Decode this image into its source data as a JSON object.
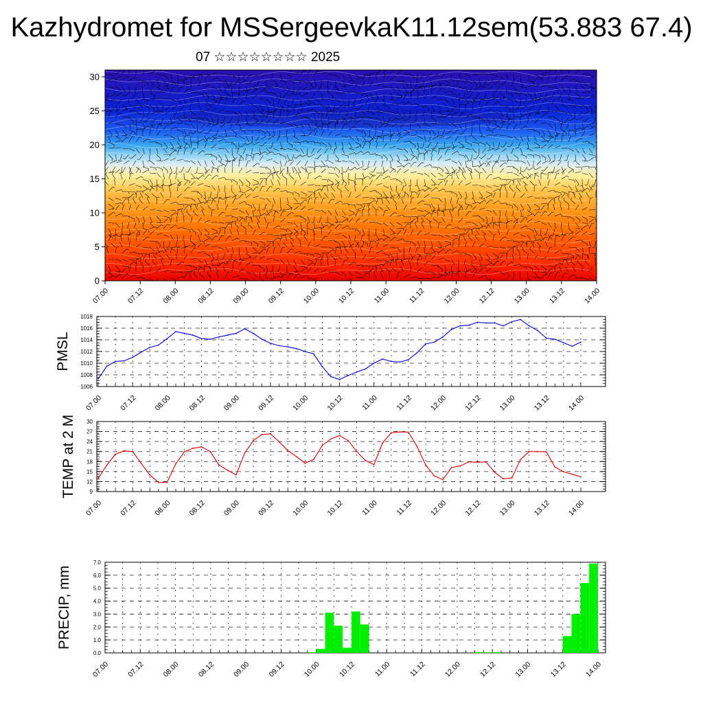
{
  "title": "Kazhydromet for MSSergeevkaK11.12sem(53.883 67.4)",
  "subtitle": "07 ☆☆☆☆☆☆☆☆ 2025",
  "time_labels": [
    "07.00",
    "07.12",
    "08.00",
    "08.12",
    "09.00",
    "09.12",
    "10.00",
    "10.12",
    "11.00",
    "11.12",
    "12.00",
    "12.12",
    "13.00",
    "13.12",
    "14.00"
  ],
  "chart_data": [
    {
      "type": "heatmap",
      "title": "",
      "xlabel": "",
      "ylabel": "",
      "x_ticks": [
        "07.00",
        "07.12",
        "08.00",
        "08.12",
        "09.00",
        "09.12",
        "10.00",
        "10.12",
        "11.00",
        "11.12",
        "12.00",
        "12.12",
        "13.00",
        "13.12",
        "14.00"
      ],
      "y_ticks": [
        0,
        5,
        10,
        15,
        20,
        25,
        30
      ],
      "ylim": [
        0,
        31
      ],
      "colormap": [
        "#e80000",
        "#ff3300",
        "#ff6a00",
        "#ff9a1a",
        "#ffc850",
        "#fff0a0",
        "#d8ecf4",
        "#8fd2f0",
        "#39a4ee",
        "#1e5cf0",
        "#0a22d4",
        "#2a10b0"
      ],
      "colormap_heights": [
        0,
        3,
        7,
        10.5,
        13.5,
        15.5,
        17.2,
        18.5,
        20,
        22,
        25,
        31
      ],
      "overlay": "wind barbs"
    },
    {
      "type": "line",
      "ylabel": "PMSL",
      "ylim": [
        1006,
        1018
      ],
      "y_ticks": [
        1006,
        1008,
        1010,
        1012,
        1014,
        1016,
        1018
      ],
      "x_ticks": [
        "07.00",
        "07.12",
        "08.00",
        "08.12",
        "09.00",
        "09.12",
        "10.00",
        "10.12",
        "11.00",
        "11.12",
        "12.00",
        "12.12",
        "13.00",
        "13.12",
        "14.00"
      ],
      "color": "#0000dd",
      "x": [
        0,
        3,
        6,
        9,
        12,
        15,
        18,
        21,
        24,
        27,
        30,
        33,
        36,
        39,
        42,
        45,
        48,
        51,
        54,
        57,
        60,
        63,
        66,
        69,
        72,
        75,
        78,
        81,
        84,
        87,
        90,
        93,
        96,
        99,
        102,
        105,
        108,
        111,
        114,
        117,
        120,
        123,
        126,
        129,
        132,
        135,
        138,
        141,
        144,
        147,
        150,
        153,
        156,
        159,
        162,
        165,
        168
      ],
      "values": [
        1007.3,
        1009.5,
        1010.3,
        1010.4,
        1011.0,
        1011.9,
        1012.7,
        1013.1,
        1014.2,
        1015.4,
        1015.1,
        1014.8,
        1014.2,
        1014.1,
        1014.5,
        1014.8,
        1015.1,
        1015.9,
        1015.1,
        1014.1,
        1013.4,
        1013.0,
        1012.8,
        1012.5,
        1012.0,
        1011.6,
        1009.4,
        1007.7,
        1007.2,
        1007.9,
        1008.5,
        1009.0,
        1010.0,
        1010.7,
        1010.3,
        1010.2,
        1010.6,
        1011.8,
        1013.3,
        1013.6,
        1014.5,
        1015.8,
        1016.4,
        1016.5,
        1017.0,
        1016.9,
        1016.9,
        1016.4,
        1017.1,
        1017.5,
        1016.4,
        1015.6,
        1014.3,
        1014.1,
        1013.5,
        1012.9,
        1013.6
      ]
    },
    {
      "type": "line",
      "ylabel": "TEMP at 2 M",
      "ylim": [
        9,
        30
      ],
      "y_ticks": [
        9,
        12,
        15,
        18,
        21,
        24,
        27,
        30
      ],
      "x_ticks": [
        "07.00",
        "07.12",
        "08.00",
        "08.12",
        "09.00",
        "09.12",
        "10.00",
        "10.12",
        "11.00",
        "11.12",
        "12.00",
        "12.12",
        "13.00",
        "13.12",
        "14.00"
      ],
      "color": "#dd0000",
      "x": [
        0,
        3,
        6,
        9,
        12,
        15,
        18,
        21,
        24,
        27,
        30,
        33,
        36,
        39,
        42,
        45,
        48,
        51,
        54,
        57,
        60,
        63,
        66,
        69,
        72,
        75,
        78,
        81,
        84,
        87,
        90,
        93,
        96,
        99,
        102,
        105,
        108,
        111,
        114,
        117,
        120,
        123,
        126,
        129,
        132,
        135,
        138,
        141,
        144,
        147,
        150,
        153,
        156,
        159,
        162,
        165,
        168
      ],
      "values": [
        12.9,
        16.9,
        20.2,
        21.2,
        21.0,
        17.4,
        14.0,
        11.7,
        11.8,
        17.3,
        20.9,
        22.0,
        22.4,
        21.0,
        17.0,
        15.4,
        14.0,
        20.5,
        24.3,
        26.1,
        26.3,
        23.9,
        21.3,
        19.5,
        17.5,
        18.6,
        22.8,
        24.8,
        25.8,
        24.3,
        21.0,
        18.3,
        17.1,
        23.6,
        26.6,
        26.9,
        26.8,
        22.5,
        17.0,
        13.7,
        12.6,
        16.2,
        16.7,
        17.9,
        17.8,
        17.9,
        14.8,
        12.8,
        13.1,
        18.6,
        21.0,
        21.0,
        20.9,
        16.4,
        14.9,
        14.2,
        13.4
      ]
    },
    {
      "type": "bar",
      "ylabel": "PRECIP, mm",
      "ylim": [
        0,
        7
      ],
      "y_ticks": [
        "0.0",
        "1.0",
        "2.0",
        "3.0",
        "4.0",
        "5.0",
        "6.0",
        "7.0"
      ],
      "x_ticks": [
        "07.00",
        "07.12",
        "08.00",
        "08.12",
        "09.00",
        "09.12",
        "10.00",
        "10.12",
        "11.00",
        "11.12",
        "12.00",
        "12.12",
        "13.00",
        "13.12",
        "14.00"
      ],
      "color": "#00ee00",
      "bar_width_hours": 3,
      "x_start": [
        69,
        72,
        75,
        78,
        81,
        84,
        87,
        126,
        129,
        132,
        156,
        159,
        162,
        165
      ],
      "values": [
        0.05,
        0.3,
        3.1,
        2.1,
        0.4,
        3.2,
        2.2,
        0.05,
        0.05,
        0.05,
        1.3,
        3.0,
        5.4,
        6.9
      ]
    }
  ]
}
